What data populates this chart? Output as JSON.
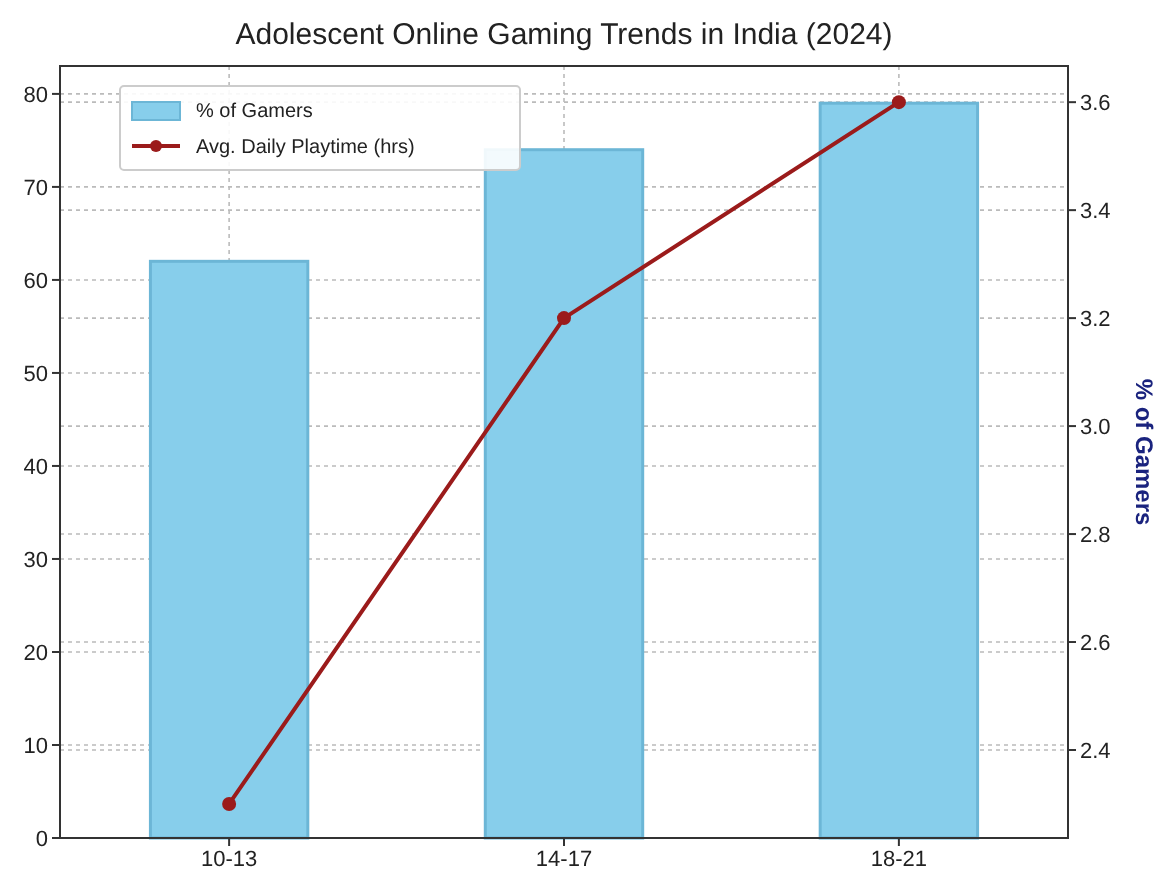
{
  "chart_data": {
    "type": "bar",
    "title": "Adolescent Online Gaming Trends in India (2024)",
    "categories": [
      "10-13",
      "14-17",
      "18-21"
    ],
    "series": [
      {
        "name": "% of Gamers",
        "color": "#87ceeb",
        "values": [
          62,
          74,
          79
        ]
      },
      {
        "name": "Avg. Daily Playtime (hrs)",
        "type": "line",
        "axis": "y2",
        "color": "#9b1b1b",
        "marker": "circle",
        "values": [
          2.3,
          3.2,
          3.6
        ]
      }
    ],
    "ylim": [
      0,
      83
    ],
    "yticks": [
      0,
      10,
      20,
      30,
      40,
      50,
      60,
      70,
      80
    ],
    "y2lim": [
      2.237,
      3.667
    ],
    "y2ticks": [
      2.4,
      2.6,
      2.8,
      {
        "value": 3.0,
        "label": "3.0"
      },
      3.2,
      3.4,
      3.6
    ],
    "y2label": "% of Gamers",
    "grid": true,
    "legend": "top left"
  }
}
